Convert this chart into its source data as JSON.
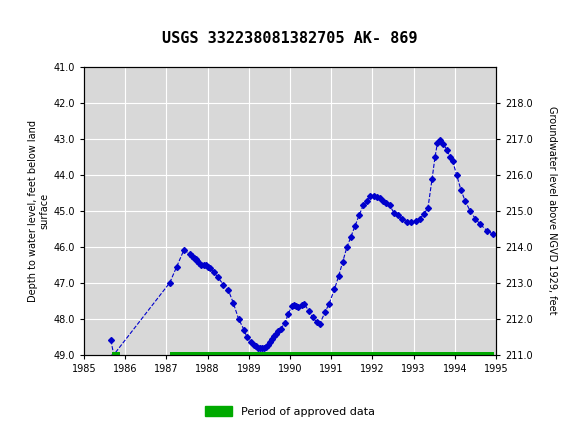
{
  "title": "USGS 332238081382705 AK- 869",
  "ylabel_left": "Depth to water level, feet below land\nsurface",
  "ylabel_right": "Groundwater level above NGVD 1929, feet",
  "xlim": [
    1985,
    1995
  ],
  "ylim_left": [
    49.0,
    41.0
  ],
  "ylim_right": [
    211.0,
    219.0
  ],
  "xticks": [
    1985,
    1986,
    1987,
    1988,
    1989,
    1990,
    1991,
    1992,
    1993,
    1994,
    1995
  ],
  "yticks_left": [
    41.0,
    42.0,
    43.0,
    44.0,
    45.0,
    46.0,
    47.0,
    48.0,
    49.0
  ],
  "yticks_right": [
    211.0,
    212.0,
    213.0,
    214.0,
    215.0,
    216.0,
    217.0,
    218.0
  ],
  "header_color": "#1a6e35",
  "line_color": "#0000CC",
  "marker": "D",
  "marker_size": 3,
  "line_style": "--",
  "green_bar_color": "#00AA00",
  "background_color": "#ffffff",
  "plot_bg_color": "#d8d8d8",
  "grid_color": "#ffffff",
  "data_x": [
    1985.65,
    1985.72,
    1987.08,
    1987.25,
    1987.42,
    1987.58,
    1987.62,
    1987.67,
    1987.72,
    1987.75,
    1987.8,
    1987.85,
    1987.9,
    1987.95,
    1988.0,
    1988.05,
    1988.15,
    1988.25,
    1988.38,
    1988.5,
    1988.62,
    1988.75,
    1988.88,
    1988.95,
    1989.05,
    1989.12,
    1989.18,
    1989.23,
    1989.28,
    1989.33,
    1989.38,
    1989.42,
    1989.47,
    1989.52,
    1989.57,
    1989.62,
    1989.67,
    1989.72,
    1989.77,
    1989.88,
    1989.95,
    1990.05,
    1990.1,
    1990.15,
    1990.2,
    1990.28,
    1990.35,
    1990.45,
    1990.55,
    1990.65,
    1990.72,
    1990.85,
    1990.95,
    1991.08,
    1991.18,
    1991.28,
    1991.38,
    1991.48,
    1991.58,
    1991.68,
    1991.78,
    1991.88,
    1991.95,
    1992.05,
    1992.12,
    1992.18,
    1992.25,
    1992.32,
    1992.42,
    1992.52,
    1992.62,
    1992.72,
    1992.85,
    1992.95,
    1993.05,
    1993.15,
    1993.25,
    1993.35,
    1993.45,
    1993.52,
    1993.58,
    1993.65,
    1993.72,
    1993.82,
    1993.88,
    1993.95,
    1994.05,
    1994.15,
    1994.25,
    1994.38,
    1994.5,
    1994.62,
    1994.78,
    1994.92
  ],
  "data_y": [
    48.6,
    49.0,
    47.0,
    46.55,
    46.1,
    46.2,
    46.25,
    46.3,
    46.35,
    46.4,
    46.45,
    46.5,
    46.5,
    46.5,
    46.55,
    46.6,
    46.7,
    46.85,
    47.05,
    47.2,
    47.55,
    48.0,
    48.3,
    48.5,
    48.65,
    48.72,
    48.76,
    48.8,
    48.82,
    48.82,
    48.8,
    48.78,
    48.72,
    48.65,
    48.55,
    48.48,
    48.42,
    48.35,
    48.28,
    48.12,
    47.88,
    47.65,
    47.62,
    47.65,
    47.68,
    47.62,
    47.58,
    47.78,
    47.95,
    48.1,
    48.15,
    47.82,
    47.58,
    47.18,
    46.82,
    46.42,
    46.02,
    45.72,
    45.42,
    45.12,
    44.85,
    44.72,
    44.6,
    44.6,
    44.62,
    44.65,
    44.72,
    44.78,
    44.85,
    45.05,
    45.12,
    45.22,
    45.32,
    45.32,
    45.28,
    45.22,
    45.1,
    44.92,
    44.12,
    43.52,
    43.12,
    43.05,
    43.15,
    43.32,
    43.52,
    43.62,
    44.02,
    44.42,
    44.72,
    45.02,
    45.22,
    45.38,
    45.55,
    45.65
  ],
  "green_bar1_xstart": 1985.68,
  "green_bar1_xend": 1985.88,
  "green_bar2_xstart": 1987.08,
  "green_bar2_xend": 1994.95,
  "legend_label": "Period of approved data",
  "legend_color": "#00AA00",
  "title_fontsize": 11,
  "axis_fontsize": 7,
  "tick_fontsize": 7
}
